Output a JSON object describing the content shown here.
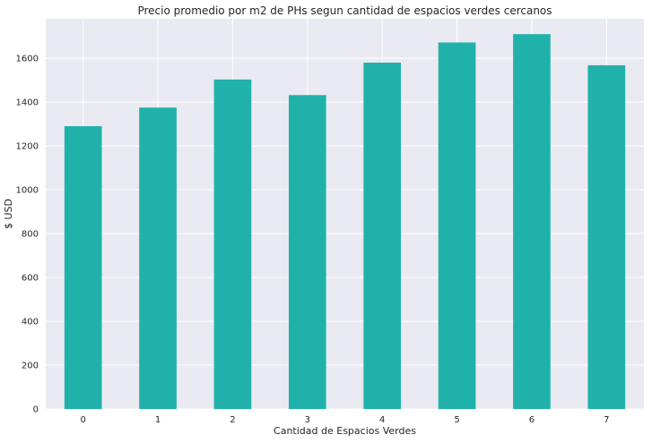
{
  "chart_data": {
    "type": "bar",
    "title": "Precio promedio por m2 de PHs segun cantidad de espacios verdes cercanos",
    "xlabel": "Cantidad de Espacios Verdes",
    "ylabel": "$ USD",
    "categories": [
      "0",
      "1",
      "2",
      "3",
      "4",
      "5",
      "6",
      "7"
    ],
    "values": [
      1290,
      1375,
      1503,
      1432,
      1580,
      1672,
      1710,
      1568
    ],
    "ylim": [
      0,
      1780
    ],
    "yticks": [
      0,
      200,
      400,
      600,
      800,
      1000,
      1200,
      1400,
      1600
    ],
    "bar_color": "#20b2aa",
    "background_color": "#eaeaf2",
    "grid": true,
    "legend": "none"
  }
}
